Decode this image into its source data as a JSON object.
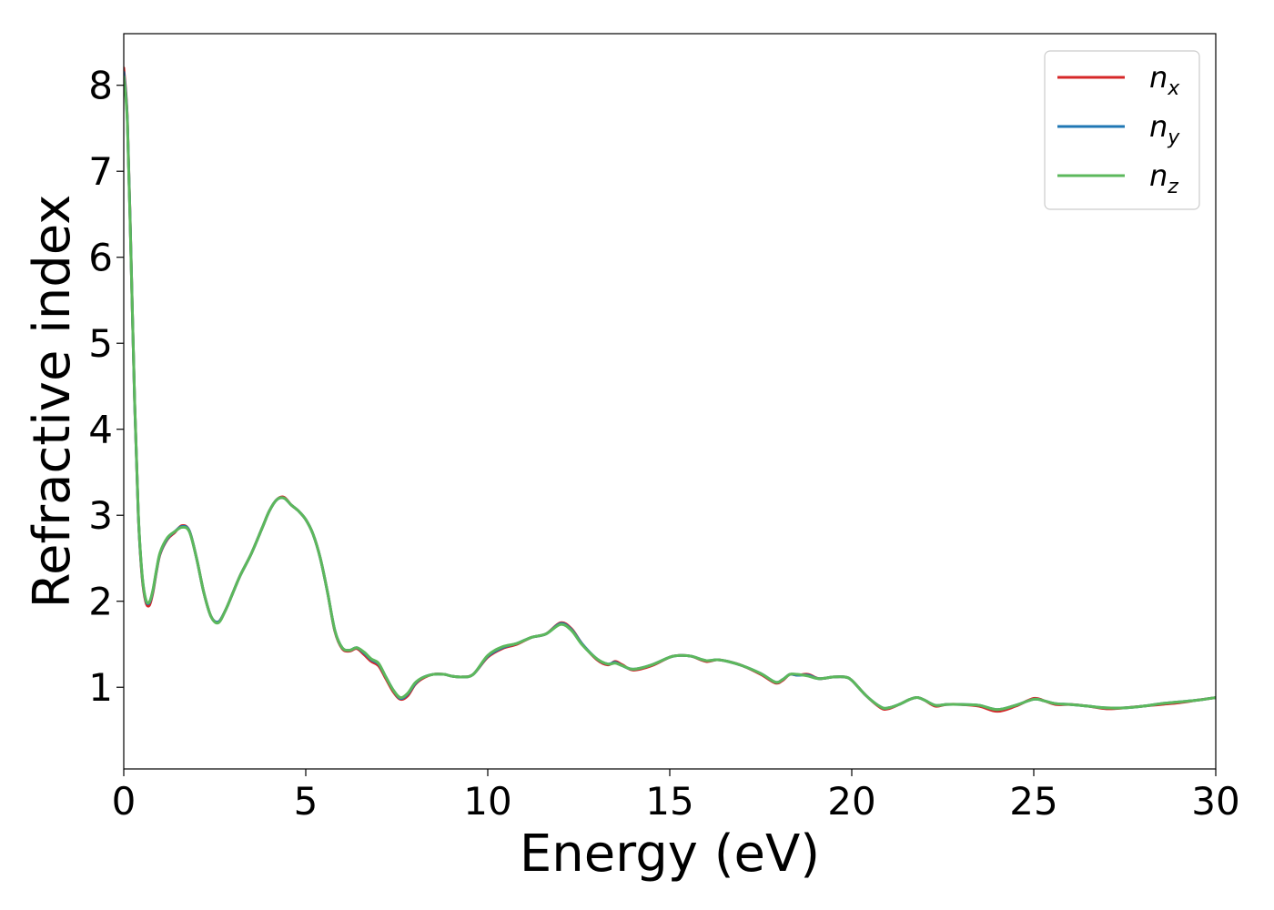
{
  "chart_data": {
    "type": "line",
    "title": "",
    "xlabel": "Energy (eV)",
    "ylabel": "Refractive index",
    "xlim": [
      0,
      30
    ],
    "ylim": [
      0.05,
      8.6
    ],
    "xticks": [
      0,
      5,
      10,
      15,
      20,
      25,
      30
    ],
    "yticks": [
      1,
      2,
      3,
      4,
      5,
      6,
      7,
      8
    ],
    "grid": false,
    "legend_position": "top-right",
    "series": [
      {
        "name": "n",
        "subscript": "x",
        "color": "#d62728",
        "x": [
          0,
          0.1,
          0.2,
          0.3,
          0.4,
          0.5,
          0.6,
          0.7,
          0.8,
          0.9,
          1.0,
          1.2,
          1.4,
          1.6,
          1.8,
          2.0,
          2.2,
          2.4,
          2.6,
          2.8,
          3.0,
          3.2,
          3.5,
          3.8,
          4.0,
          4.2,
          4.4,
          4.6,
          4.8,
          5.0,
          5.2,
          5.4,
          5.6,
          5.8,
          6.0,
          6.2,
          6.4,
          6.6,
          6.8,
          7.0,
          7.2,
          7.4,
          7.6,
          7.8,
          8.0,
          8.2,
          8.5,
          8.8,
          9.0,
          9.3,
          9.6,
          10.0,
          10.4,
          10.8,
          11.2,
          11.6,
          12.0,
          12.3,
          12.6,
          13.0,
          13.3,
          13.5,
          13.7,
          14.0,
          14.5,
          15.0,
          15.3,
          15.6,
          16.0,
          16.3,
          16.6,
          17.0,
          17.5,
          17.9,
          18.1,
          18.3,
          18.5,
          18.8,
          19.1,
          19.5,
          19.8,
          20.0,
          20.4,
          20.8,
          21.0,
          21.3,
          21.6,
          21.8,
          22.0,
          22.3,
          22.6,
          23.0,
          23.5,
          24.0,
          24.5,
          25.0,
          25.3,
          25.6,
          26.0,
          26.5,
          27.0,
          27.5,
          28.0,
          28.5,
          29.0,
          29.5,
          30.0
        ],
        "y": [
          8.2,
          7.6,
          6.0,
          4.3,
          3.0,
          2.3,
          2.0,
          1.95,
          2.1,
          2.35,
          2.55,
          2.72,
          2.8,
          2.88,
          2.82,
          2.5,
          2.1,
          1.82,
          1.76,
          1.9,
          2.1,
          2.3,
          2.55,
          2.85,
          3.05,
          3.18,
          3.21,
          3.12,
          3.05,
          2.95,
          2.78,
          2.5,
          2.1,
          1.65,
          1.45,
          1.42,
          1.45,
          1.38,
          1.3,
          1.25,
          1.1,
          0.95,
          0.86,
          0.9,
          1.03,
          1.1,
          1.15,
          1.15,
          1.13,
          1.12,
          1.15,
          1.35,
          1.45,
          1.5,
          1.58,
          1.62,
          1.75,
          1.68,
          1.5,
          1.32,
          1.26,
          1.3,
          1.26,
          1.2,
          1.25,
          1.35,
          1.37,
          1.36,
          1.3,
          1.32,
          1.3,
          1.25,
          1.15,
          1.05,
          1.08,
          1.15,
          1.14,
          1.15,
          1.1,
          1.12,
          1.12,
          1.08,
          0.9,
          0.76,
          0.75,
          0.8,
          0.86,
          0.88,
          0.85,
          0.78,
          0.8,
          0.8,
          0.78,
          0.72,
          0.78,
          0.87,
          0.84,
          0.8,
          0.8,
          0.78,
          0.75,
          0.76,
          0.78,
          0.8,
          0.82,
          0.85,
          0.88
        ]
      },
      {
        "name": "n",
        "subscript": "y",
        "color": "#1f77b4",
        "x": [
          0,
          0.1,
          0.2,
          0.3,
          0.4,
          0.5,
          0.6,
          0.7,
          0.8,
          0.9,
          1.0,
          1.2,
          1.4,
          1.6,
          1.8,
          2.0,
          2.2,
          2.4,
          2.6,
          2.8,
          3.0,
          3.2,
          3.5,
          3.8,
          4.0,
          4.2,
          4.4,
          4.6,
          4.8,
          5.0,
          5.2,
          5.4,
          5.6,
          5.8,
          6.0,
          6.2,
          6.4,
          6.6,
          6.8,
          7.0,
          7.2,
          7.4,
          7.6,
          7.8,
          8.0,
          8.2,
          8.5,
          8.8,
          9.0,
          9.3,
          9.6,
          10.0,
          10.4,
          10.8,
          11.2,
          11.6,
          12.0,
          12.3,
          12.6,
          13.0,
          13.3,
          13.5,
          13.7,
          14.0,
          14.5,
          15.0,
          15.3,
          15.6,
          16.0,
          16.3,
          16.6,
          17.0,
          17.5,
          17.9,
          18.1,
          18.3,
          18.5,
          18.8,
          19.1,
          19.5,
          19.8,
          20.0,
          20.4,
          20.8,
          21.0,
          21.3,
          21.6,
          21.8,
          22.0,
          22.3,
          22.6,
          23.0,
          23.5,
          24.0,
          24.5,
          25.0,
          25.3,
          25.6,
          26.0,
          26.5,
          27.0,
          27.5,
          28.0,
          28.5,
          29.0,
          29.5,
          30.0
        ],
        "y": [
          8.15,
          7.58,
          6.0,
          4.3,
          3.0,
          2.32,
          2.02,
          1.98,
          2.12,
          2.36,
          2.56,
          2.73,
          2.81,
          2.87,
          2.82,
          2.5,
          2.1,
          1.82,
          1.76,
          1.9,
          2.1,
          2.3,
          2.55,
          2.85,
          3.05,
          3.18,
          3.2,
          3.12,
          3.05,
          2.95,
          2.78,
          2.5,
          2.1,
          1.66,
          1.46,
          1.43,
          1.46,
          1.4,
          1.32,
          1.27,
          1.12,
          0.97,
          0.87,
          0.92,
          1.04,
          1.11,
          1.15,
          1.15,
          1.13,
          1.12,
          1.15,
          1.36,
          1.46,
          1.51,
          1.58,
          1.62,
          1.74,
          1.67,
          1.5,
          1.33,
          1.27,
          1.29,
          1.25,
          1.21,
          1.26,
          1.35,
          1.37,
          1.36,
          1.31,
          1.32,
          1.3,
          1.25,
          1.16,
          1.06,
          1.09,
          1.15,
          1.14,
          1.14,
          1.1,
          1.12,
          1.12,
          1.08,
          0.9,
          0.77,
          0.76,
          0.8,
          0.86,
          0.88,
          0.85,
          0.79,
          0.8,
          0.8,
          0.79,
          0.74,
          0.79,
          0.86,
          0.84,
          0.81,
          0.8,
          0.78,
          0.76,
          0.76,
          0.78,
          0.81,
          0.83,
          0.85,
          0.88
        ]
      },
      {
        "name": "n",
        "subscript": "z",
        "color": "#5cb85c",
        "x": [
          0,
          0.1,
          0.2,
          0.3,
          0.4,
          0.5,
          0.6,
          0.7,
          0.8,
          0.9,
          1.0,
          1.2,
          1.4,
          1.6,
          1.8,
          2.0,
          2.2,
          2.4,
          2.6,
          2.8,
          3.0,
          3.2,
          3.5,
          3.8,
          4.0,
          4.2,
          4.4,
          4.6,
          4.8,
          5.0,
          5.2,
          5.4,
          5.6,
          5.8,
          6.0,
          6.2,
          6.4,
          6.6,
          6.8,
          7.0,
          7.2,
          7.4,
          7.6,
          7.8,
          8.0,
          8.2,
          8.5,
          8.8,
          9.0,
          9.3,
          9.6,
          10.0,
          10.4,
          10.8,
          11.2,
          11.6,
          12.0,
          12.3,
          12.6,
          13.0,
          13.3,
          13.5,
          13.7,
          14.0,
          14.5,
          15.0,
          15.3,
          15.6,
          16.0,
          16.3,
          16.6,
          17.0,
          17.5,
          17.9,
          18.1,
          18.3,
          18.5,
          18.8,
          19.1,
          19.5,
          19.8,
          20.0,
          20.4,
          20.8,
          21.0,
          21.3,
          21.6,
          21.8,
          22.0,
          22.3,
          22.6,
          23.0,
          23.5,
          24.0,
          24.5,
          25.0,
          25.3,
          25.6,
          26.0,
          26.5,
          27.0,
          27.5,
          28.0,
          28.5,
          29.0,
          29.5,
          30.0
        ],
        "y": [
          8.1,
          7.55,
          5.98,
          4.32,
          3.02,
          2.33,
          2.03,
          1.99,
          2.13,
          2.37,
          2.57,
          2.74,
          2.81,
          2.86,
          2.81,
          2.5,
          2.1,
          1.82,
          1.75,
          1.9,
          2.1,
          2.3,
          2.55,
          2.85,
          3.05,
          3.18,
          3.2,
          3.12,
          3.05,
          2.95,
          2.78,
          2.5,
          2.1,
          1.66,
          1.46,
          1.43,
          1.46,
          1.41,
          1.33,
          1.28,
          1.12,
          0.97,
          0.88,
          0.93,
          1.05,
          1.11,
          1.15,
          1.15,
          1.13,
          1.12,
          1.15,
          1.37,
          1.47,
          1.51,
          1.58,
          1.62,
          1.73,
          1.66,
          1.49,
          1.33,
          1.27,
          1.28,
          1.25,
          1.21,
          1.26,
          1.35,
          1.37,
          1.36,
          1.31,
          1.32,
          1.3,
          1.25,
          1.16,
          1.06,
          1.09,
          1.15,
          1.15,
          1.13,
          1.1,
          1.12,
          1.12,
          1.08,
          0.9,
          0.77,
          0.76,
          0.8,
          0.86,
          0.88,
          0.85,
          0.79,
          0.8,
          0.8,
          0.79,
          0.74,
          0.79,
          0.86,
          0.84,
          0.81,
          0.8,
          0.78,
          0.76,
          0.76,
          0.78,
          0.81,
          0.83,
          0.85,
          0.88
        ]
      }
    ]
  }
}
